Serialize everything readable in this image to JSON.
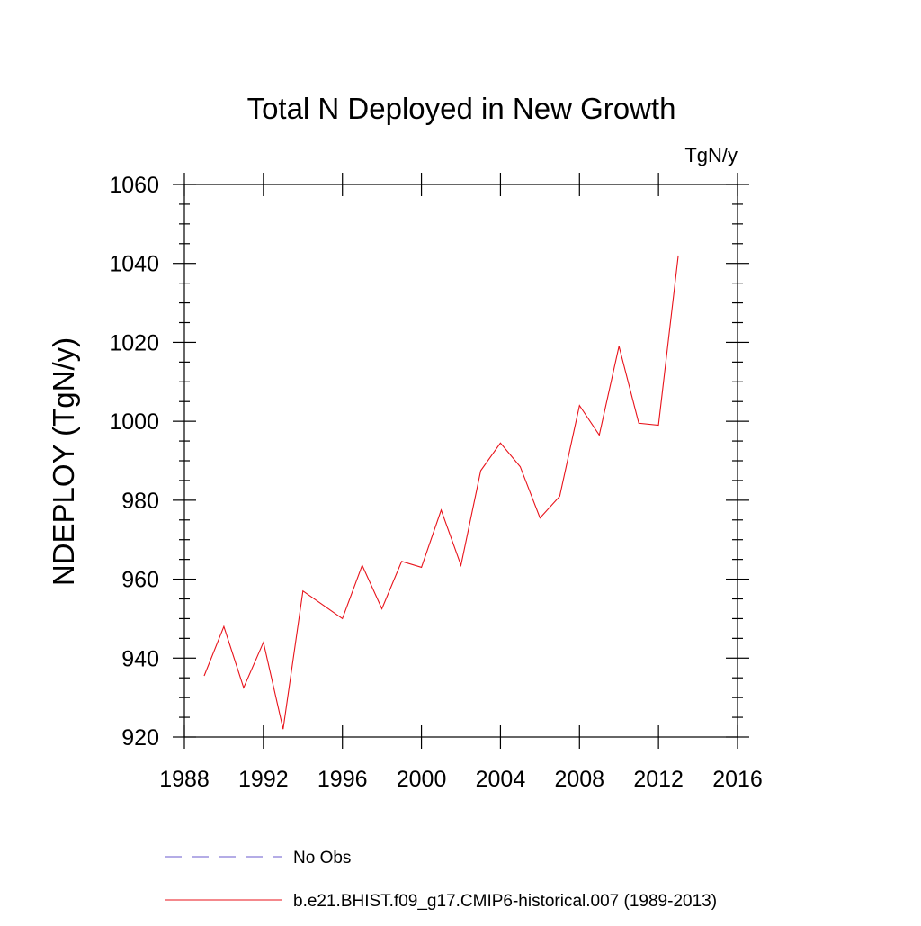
{
  "chart_data": {
    "type": "line",
    "title": "Total N Deployed in New Growth",
    "units_label": "TgN/y",
    "ylabel": "NDEPLOY  (TgN/y)",
    "xlabel": "",
    "xlim": [
      1988,
      2016
    ],
    "ylim": [
      920,
      1060
    ],
    "x_ticks": [
      1988,
      1992,
      1996,
      2000,
      2004,
      2008,
      2012,
      2016
    ],
    "y_ticks": [
      920,
      940,
      960,
      980,
      1000,
      1020,
      1040,
      1060
    ],
    "grid": false,
    "legend_position": "bottom",
    "series": [
      {
        "name": "No Obs",
        "style": "dashed",
        "color": "#6a5acd",
        "x": [],
        "y": []
      },
      {
        "name": "b.e21.BHIST.f09_g17.CMIP6-historical.007 (1989-2013)",
        "style": "solid",
        "color": "#e8121a",
        "x": [
          1989,
          1990,
          1991,
          1992,
          1993,
          1994,
          1995,
          1996,
          1997,
          1998,
          1999,
          2000,
          2001,
          2002,
          2003,
          2004,
          2005,
          2006,
          2007,
          2008,
          2009,
          2010,
          2011,
          2012,
          2013
        ],
        "y": [
          935.5,
          948,
          932.5,
          944,
          922,
          957,
          953.5,
          950,
          963.5,
          952.5,
          964.5,
          963,
          977.5,
          963.5,
          987.5,
          994.5,
          988.5,
          975.5,
          981,
          1004,
          996.5,
          1019,
          999.5,
          999,
          1042
        ]
      }
    ]
  }
}
